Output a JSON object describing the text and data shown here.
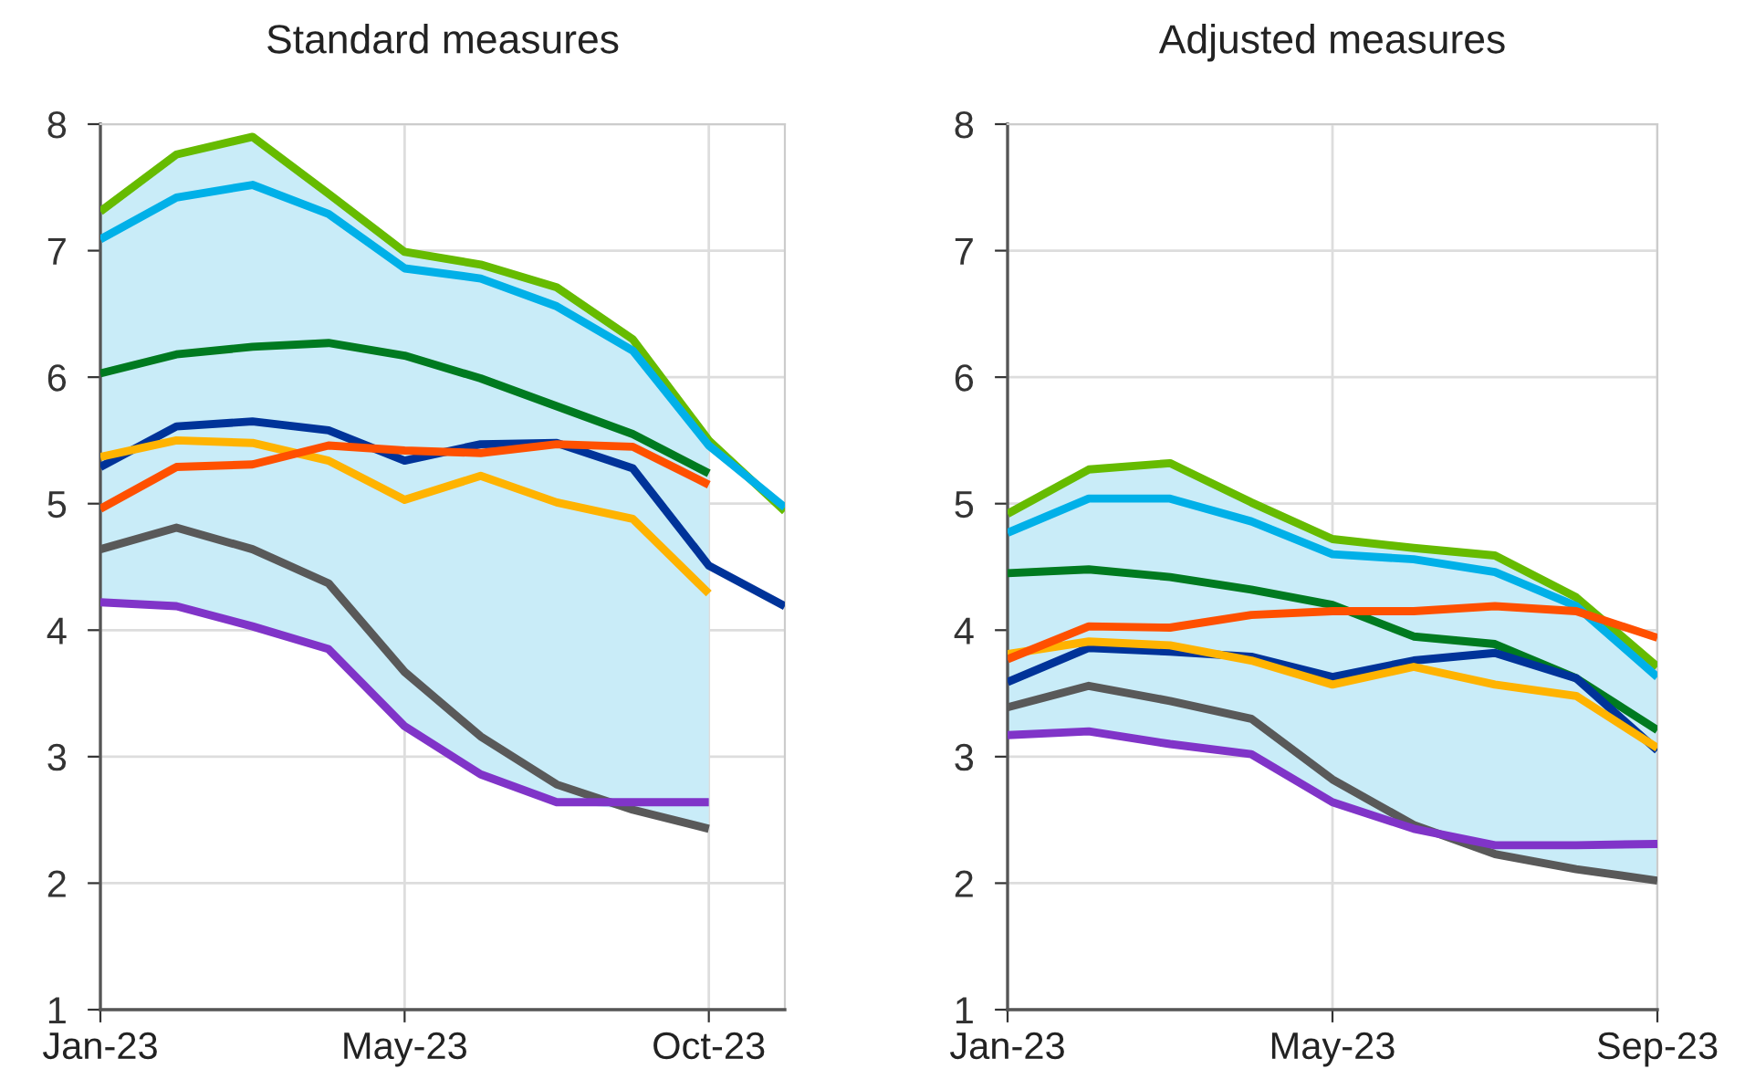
{
  "chart_data": [
    {
      "type": "line",
      "title": "Standard measures",
      "categories": [
        "Jan-23",
        null,
        null,
        null,
        "May-23",
        null,
        null,
        null,
        "Oct-23",
        null
      ],
      "ylim": [
        1,
        8
      ],
      "yticks": [
        1,
        2,
        3,
        4,
        5,
        6,
        7,
        8
      ],
      "grid": true,
      "legend": false,
      "series": [
        {
          "color": "#66bb00",
          "values": [
            7.31,
            7.76,
            7.9,
            7.45,
            6.99,
            6.89,
            6.71,
            6.3,
            5.5,
            4.94
          ],
          "upper": [
            7.31,
            7.76,
            7.9,
            7.45,
            6.99,
            6.89,
            6.71,
            6.3,
            5.5,
            null
          ],
          "lower": [
            4.22,
            4.19,
            4.03,
            3.85,
            3.24,
            2.86,
            2.64,
            2.58,
            2.43,
            null
          ]
        },
        {
          "color": "#00b0e8",
          "values": [
            7.09,
            7.42,
            7.52,
            7.29,
            6.86,
            6.78,
            6.56,
            6.21,
            5.46,
            4.97
          ]
        },
        {
          "color": "#007a20",
          "values": [
            6.03,
            6.18,
            6.24,
            6.27,
            6.17,
            5.99,
            5.77,
            5.55,
            5.24,
            null
          ]
        },
        {
          "color": "#003399",
          "values": [
            5.29,
            5.61,
            5.65,
            5.58,
            5.34,
            5.47,
            5.48,
            5.28,
            4.51,
            4.19
          ]
        },
        {
          "color": "#ffb300",
          "values": [
            5.37,
            5.5,
            5.48,
            5.34,
            5.03,
            5.22,
            5.01,
            4.88,
            4.29,
            null
          ]
        },
        {
          "color": "#ff5000",
          "values": [
            4.96,
            5.29,
            5.31,
            5.46,
            5.42,
            5.4,
            5.47,
            5.45,
            5.15,
            null
          ]
        },
        {
          "color": "#595959",
          "values": [
            4.64,
            4.81,
            4.64,
            4.37,
            3.67,
            3.16,
            2.78,
            2.58,
            2.43,
            null
          ]
        },
        {
          "color": "#8034c8",
          "values": [
            4.22,
            4.19,
            4.03,
            3.85,
            3.24,
            2.86,
            2.64,
            2.64,
            2.64,
            null
          ]
        }
      ]
    },
    {
      "type": "line",
      "title": "Adjusted measures",
      "categories": [
        "Jan-23",
        null,
        null,
        null,
        "May-23",
        null,
        null,
        null,
        "Sep-23"
      ],
      "ylim": [
        1,
        8
      ],
      "yticks": [
        1,
        2,
        3,
        4,
        5,
        6,
        7,
        8
      ],
      "grid": true,
      "legend": false,
      "series": [
        {
          "color": "#66bb00",
          "values": [
            4.92,
            5.27,
            5.32,
            5.01,
            4.72,
            4.65,
            4.59,
            4.26,
            3.71
          ],
          "upper": [
            4.92,
            5.27,
            5.32,
            5.01,
            4.72,
            4.65,
            4.59,
            4.26,
            3.71
          ],
          "lower": [
            3.17,
            3.2,
            3.1,
            3.02,
            2.64,
            2.43,
            2.23,
            2.11,
            2.02
          ]
        },
        {
          "color": "#00b0e8",
          "values": [
            4.77,
            5.04,
            5.04,
            4.86,
            4.6,
            4.56,
            4.46,
            4.19,
            3.63
          ]
        },
        {
          "color": "#007a20",
          "values": [
            4.45,
            4.48,
            4.42,
            4.32,
            4.2,
            3.95,
            3.89,
            3.62,
            3.21
          ]
        },
        {
          "color": "#003399",
          "values": [
            3.59,
            3.86,
            3.83,
            3.79,
            3.63,
            3.76,
            3.82,
            3.62,
            3.05
          ]
        },
        {
          "color": "#ffb300",
          "values": [
            3.81,
            3.91,
            3.88,
            3.76,
            3.57,
            3.71,
            3.57,
            3.48,
            3.07
          ]
        },
        {
          "color": "#ff5000",
          "values": [
            3.77,
            4.03,
            4.02,
            4.12,
            4.15,
            4.15,
            4.19,
            4.15,
            3.94
          ]
        },
        {
          "color": "#595959",
          "values": [
            3.39,
            3.56,
            3.44,
            3.3,
            2.82,
            2.46,
            2.23,
            2.11,
            2.02
          ]
        },
        {
          "color": "#8034c8",
          "values": [
            3.17,
            3.2,
            3.1,
            3.02,
            2.64,
            2.43,
            2.3,
            2.3,
            2.31
          ]
        }
      ]
    }
  ]
}
